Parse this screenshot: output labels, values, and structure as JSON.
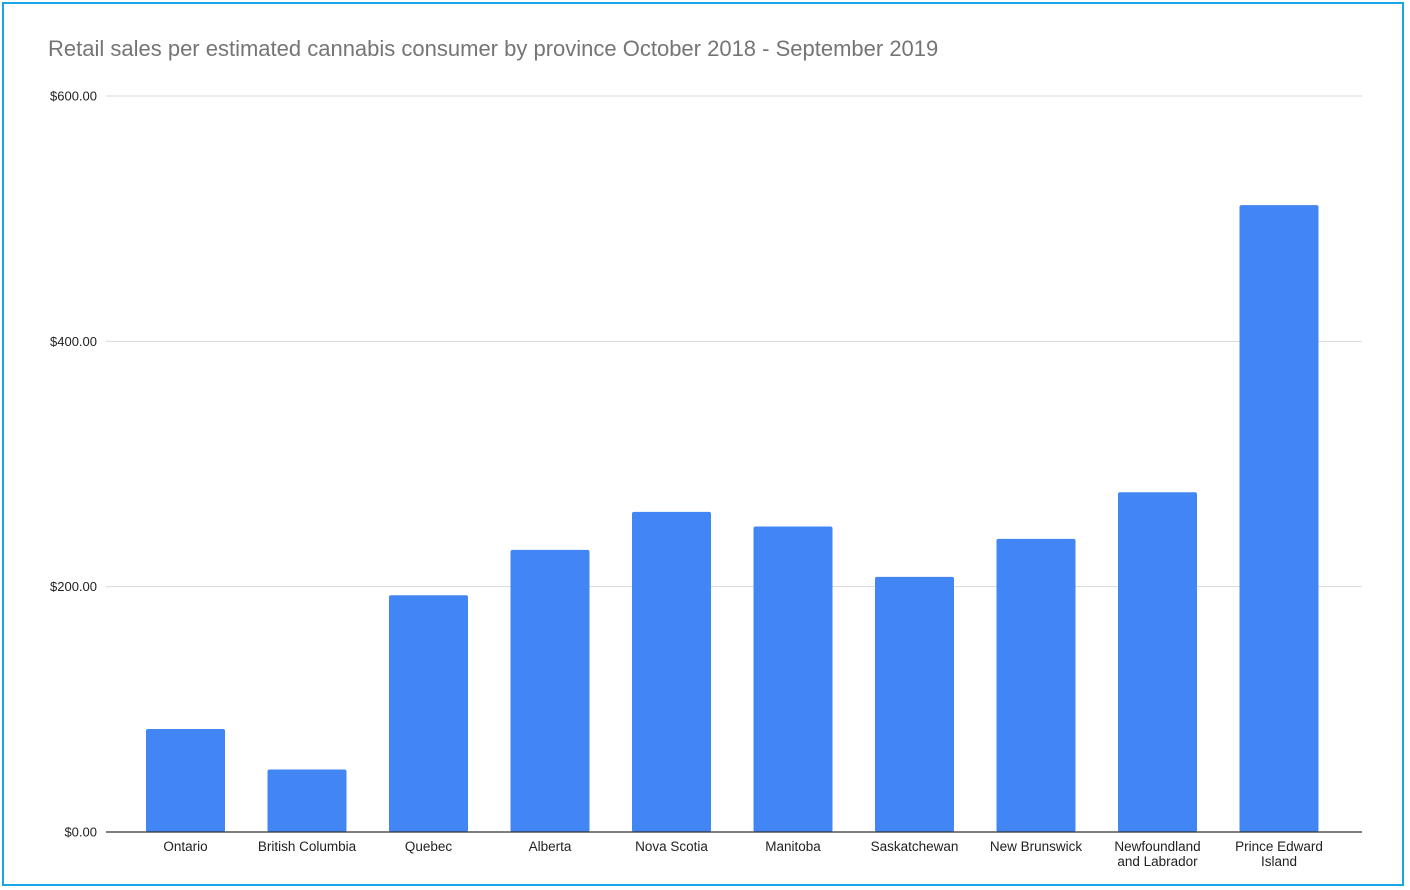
{
  "chart_data": {
    "type": "bar",
    "title": "Retail sales per estimated cannabis consumer by province October 2018 - September 2019",
    "xlabel": "",
    "ylabel": "",
    "categories": [
      [
        "Ontario"
      ],
      [
        "British Columbia"
      ],
      [
        "Quebec"
      ],
      [
        "Alberta"
      ],
      [
        "Nova Scotia"
      ],
      [
        "Manitoba"
      ],
      [
        "Saskatchewan"
      ],
      [
        "New Brunswick"
      ],
      [
        "Newfoundland",
        "and Labrador"
      ],
      [
        "Prince Edward",
        "Island"
      ]
    ],
    "values": [
      84,
      51,
      193,
      230,
      261,
      249,
      208,
      239,
      277,
      511
    ],
    "ylim": [
      0,
      600
    ],
    "yticks": [
      {
        "value": 0,
        "label": "$0.00"
      },
      {
        "value": 200,
        "label": "$200.00"
      },
      {
        "value": 400,
        "label": "$400.00"
      },
      {
        "value": 600,
        "label": "$600.00"
      }
    ],
    "bar_color": "#4285f4",
    "grid": true,
    "legend": "none"
  }
}
